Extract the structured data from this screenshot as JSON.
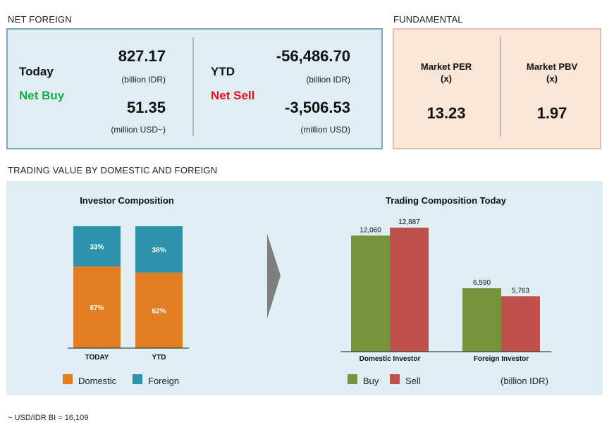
{
  "net_foreign": {
    "section_title": "NET FOREIGN",
    "today": {
      "label": "Today",
      "status": "Net Buy",
      "value_idr": "827.17",
      "unit_idr": "(billion IDR)",
      "value_usd": "51.35",
      "unit_usd": "(million USD~)"
    },
    "ytd": {
      "label": "YTD",
      "status": "Net Sell",
      "value_idr": "-56,486.70",
      "unit_idr": "(billion IDR)",
      "value_usd": "-3,506.53",
      "unit_usd": "(million USD)"
    }
  },
  "fundamental": {
    "section_title": "FUNDAMENTAL",
    "per_label_1": "Market PER",
    "per_label_2": "(x)",
    "per_value": "13.23",
    "pbv_label_1": "Market PBV",
    "pbv_label_2": "(x)",
    "pbv_value": "1.97"
  },
  "trading": {
    "section_title": "TRADING VALUE BY DOMESTIC AND FOREIGN",
    "legend_domestic": "Domestic",
    "legend_foreign": "Foreign",
    "legend_buy": "Buy",
    "legend_sell": "Sell",
    "unit_note": "(billion IDR)"
  },
  "colors": {
    "domestic": "#e27d23",
    "foreign": "#2d92ac",
    "buy": "#77933c",
    "sell": "#c0504d",
    "arrow": "#7f7f7f"
  },
  "footnote": "~ USD/IDR BI = 16,109",
  "chart_data": [
    {
      "type": "bar",
      "stacked": true,
      "percent": true,
      "title": "Investor Composition",
      "categories": [
        "TODAY",
        "YTD"
      ],
      "series": [
        {
          "name": "Domestic",
          "values": [
            67,
            62
          ],
          "labels": [
            "67%",
            "62%"
          ]
        },
        {
          "name": "Foreign",
          "values": [
            33,
            38
          ],
          "labels": [
            "33%",
            "38%"
          ]
        }
      ],
      "ylim": [
        0,
        100
      ],
      "legend": "bottom"
    },
    {
      "type": "bar",
      "title": "Trading Composition Today",
      "categories": [
        "Domestic Investor",
        "Foreign Investor"
      ],
      "series": [
        {
          "name": "Buy",
          "values": [
            12060,
            6590
          ],
          "labels": [
            "12,060",
            "6,590"
          ]
        },
        {
          "name": "Sell",
          "values": [
            12887,
            5763
          ],
          "labels": [
            "12,887",
            "5,763"
          ]
        }
      ],
      "ylim": [
        0,
        13500
      ],
      "legend": "bottom"
    }
  ]
}
